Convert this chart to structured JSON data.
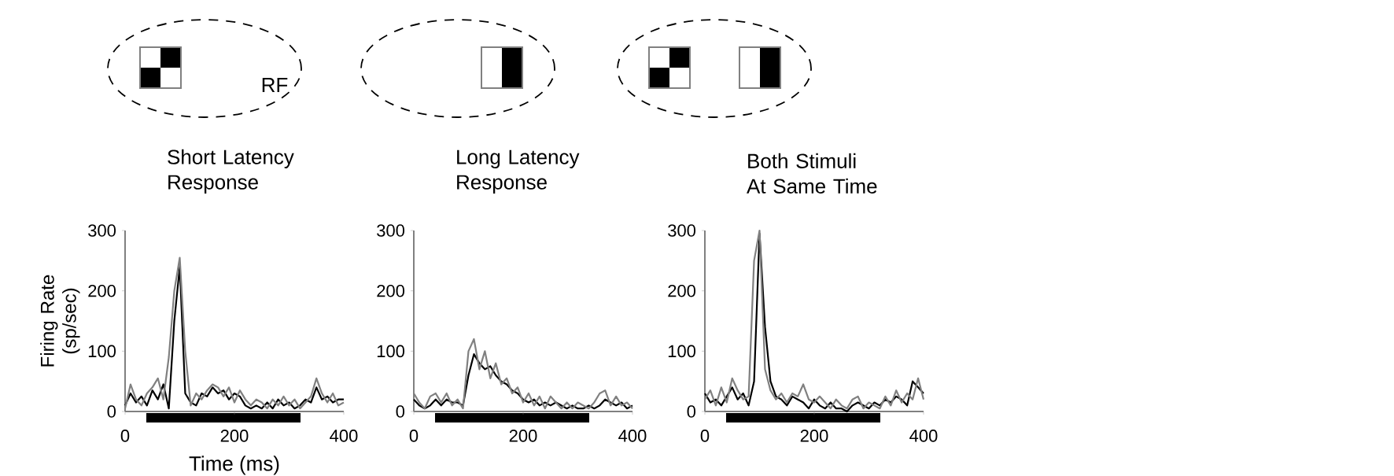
{
  "chart_data": [
    {
      "type": "line",
      "title": "Short Latency Response",
      "xlabel": "Time (ms)",
      "ylabel": "Firing Rate (sp/sec)",
      "annotations": [
        "RF"
      ],
      "x": [
        0,
        10,
        20,
        30,
        40,
        50,
        60,
        70,
        80,
        90,
        100,
        110,
        120,
        130,
        140,
        150,
        160,
        170,
        180,
        190,
        200,
        210,
        220,
        230,
        240,
        250,
        260,
        270,
        280,
        290,
        300,
        310,
        320,
        330,
        340,
        350,
        360,
        370,
        380,
        390,
        400
      ],
      "series": [
        {
          "color": "#000000",
          "values": [
            10,
            30,
            15,
            25,
            10,
            35,
            20,
            45,
            5,
            150,
            240,
            30,
            15,
            10,
            30,
            25,
            40,
            30,
            35,
            20,
            30,
            25,
            10,
            5,
            10,
            5,
            15,
            5,
            20,
            10,
            15,
            5,
            10,
            20,
            15,
            40,
            20,
            25,
            15,
            20,
            20
          ]
        },
        {
          "color": "#808080",
          "values": [
            5,
            45,
            20,
            10,
            30,
            40,
            55,
            20,
            90,
            200,
            255,
            100,
            10,
            30,
            20,
            35,
            45,
            40,
            25,
            40,
            15,
            35,
            20,
            10,
            20,
            15,
            5,
            20,
            10,
            25,
            10,
            20,
            5,
            15,
            25,
            55,
            30,
            15,
            30,
            10,
            15
          ]
        }
      ],
      "xlim": [
        0,
        400
      ],
      "ylim": [
        0,
        300
      ],
      "xticks": [
        0,
        200,
        400
      ],
      "yticks": [
        0,
        100,
        200,
        300
      ]
    },
    {
      "type": "line",
      "title": "Long Latency Response",
      "x": [
        0,
        10,
        20,
        30,
        40,
        50,
        60,
        70,
        80,
        90,
        100,
        110,
        120,
        130,
        140,
        150,
        160,
        170,
        180,
        190,
        200,
        210,
        220,
        230,
        240,
        250,
        260,
        270,
        280,
        290,
        300,
        310,
        320,
        330,
        340,
        350,
        360,
        370,
        380,
        390,
        400
      ],
      "series": [
        {
          "color": "#000000",
          "values": [
            20,
            10,
            5,
            10,
            20,
            10,
            20,
            15,
            15,
            10,
            60,
            95,
            80,
            70,
            75,
            60,
            50,
            45,
            35,
            30,
            20,
            15,
            20,
            10,
            15,
            10,
            15,
            10,
            5,
            10,
            5,
            5,
            10,
            5,
            10,
            20,
            15,
            10,
            15,
            5,
            10
          ]
        },
        {
          "color": "#808080",
          "values": [
            30,
            15,
            5,
            25,
            30,
            15,
            30,
            10,
            20,
            5,
            100,
            120,
            70,
            100,
            55,
            80,
            45,
            55,
            30,
            40,
            15,
            30,
            10,
            25,
            5,
            25,
            15,
            5,
            15,
            5,
            15,
            10,
            5,
            15,
            30,
            35,
            10,
            25,
            10,
            15,
            5
          ]
        }
      ],
      "xlim": [
        0,
        400
      ],
      "ylim": [
        0,
        300
      ],
      "xticks": [
        0,
        200,
        400
      ],
      "yticks": [
        0,
        100,
        200,
        300
      ]
    },
    {
      "type": "line",
      "title": "Both Stimuli At Same Time",
      "x": [
        0,
        10,
        20,
        30,
        40,
        50,
        60,
        70,
        80,
        90,
        100,
        110,
        120,
        130,
        140,
        150,
        160,
        170,
        180,
        190,
        200,
        210,
        220,
        230,
        240,
        250,
        260,
        270,
        280,
        290,
        300,
        310,
        320,
        330,
        340,
        350,
        360,
        370,
        380,
        390,
        400
      ],
      "series": [
        {
          "color": "#000000",
          "values": [
            30,
            15,
            20,
            10,
            25,
            40,
            20,
            30,
            10,
            50,
            295,
            140,
            50,
            25,
            20,
            10,
            25,
            20,
            15,
            5,
            20,
            10,
            5,
            15,
            5,
            5,
            0,
            10,
            15,
            10,
            5,
            15,
            10,
            20,
            15,
            25,
            20,
            10,
            50,
            40,
            30
          ]
        },
        {
          "color": "#808080",
          "values": [
            20,
            35,
            10,
            40,
            15,
            55,
            35,
            20,
            25,
            250,
            300,
            70,
            35,
            20,
            30,
            15,
            30,
            25,
            45,
            20,
            15,
            25,
            15,
            5,
            20,
            10,
            5,
            20,
            25,
            5,
            15,
            10,
            5,
            25,
            10,
            35,
            15,
            30,
            20,
            55,
            20
          ]
        }
      ],
      "xlim": [
        0,
        400
      ],
      "ylim": [
        0,
        300
      ],
      "xticks": [
        0,
        200,
        400
      ],
      "yticks": [
        0,
        100,
        200,
        300
      ]
    }
  ]
}
